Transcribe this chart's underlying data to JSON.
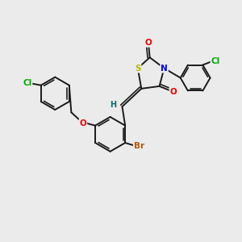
{
  "background_color": "#ebebeb",
  "bond_color": "#1a1a1a",
  "atom_colors": {
    "S": "#b8b800",
    "N": "#0000ee",
    "O": "#ee0000",
    "Cl": "#00aa00",
    "Br": "#bb5500",
    "H": "#007070",
    "C": "#1a1a1a"
  },
  "bond_width": 1.4,
  "font_size": 7.5,
  "figsize": [
    3.0,
    3.0
  ],
  "dpi": 100
}
